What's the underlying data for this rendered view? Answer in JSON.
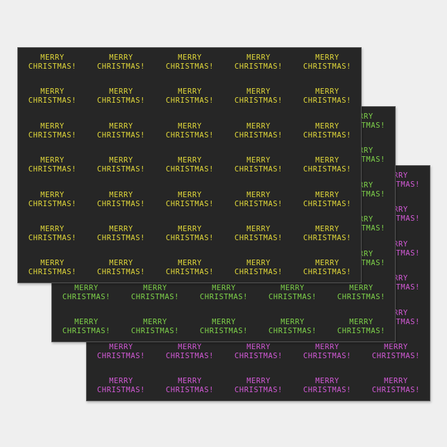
{
  "product": {
    "line1": "MERRY",
    "line2": "CHRISTMAS!",
    "sheets": [
      {
        "name": "yellow",
        "text_color": "#e2d93a",
        "background": "#262626"
      },
      {
        "name": "green",
        "text_color": "#7fd34a",
        "background": "#262626"
      },
      {
        "name": "pink",
        "text_color": "#d45ad8",
        "background": "#262626"
      }
    ]
  }
}
